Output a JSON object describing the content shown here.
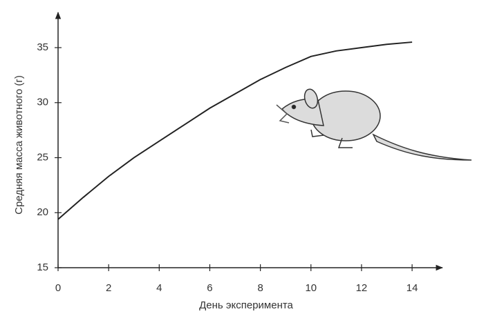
{
  "chart_data": {
    "type": "line",
    "x_label": "День эксперимента",
    "y_label": "Средняя масса животного (г)",
    "x": [
      0,
      1,
      2,
      3,
      4,
      5,
      6,
      7,
      8,
      9,
      10,
      11,
      12,
      13,
      14
    ],
    "series": [
      {
        "color": "#222222",
        "values": [
          19.4,
          21.4,
          23.3,
          25.0,
          26.5,
          28.0,
          29.5,
          30.8,
          32.1,
          33.2,
          34.2,
          34.7,
          35.0,
          35.3,
          35.5
        ]
      }
    ],
    "xlim": [
      0,
      15.2
    ],
    "xticks": [
      0,
      2,
      4,
      6,
      8,
      10,
      12,
      14
    ],
    "ylim": [
      15,
      38.2
    ],
    "yticks": [
      15,
      20,
      25,
      30,
      35
    ]
  }
}
